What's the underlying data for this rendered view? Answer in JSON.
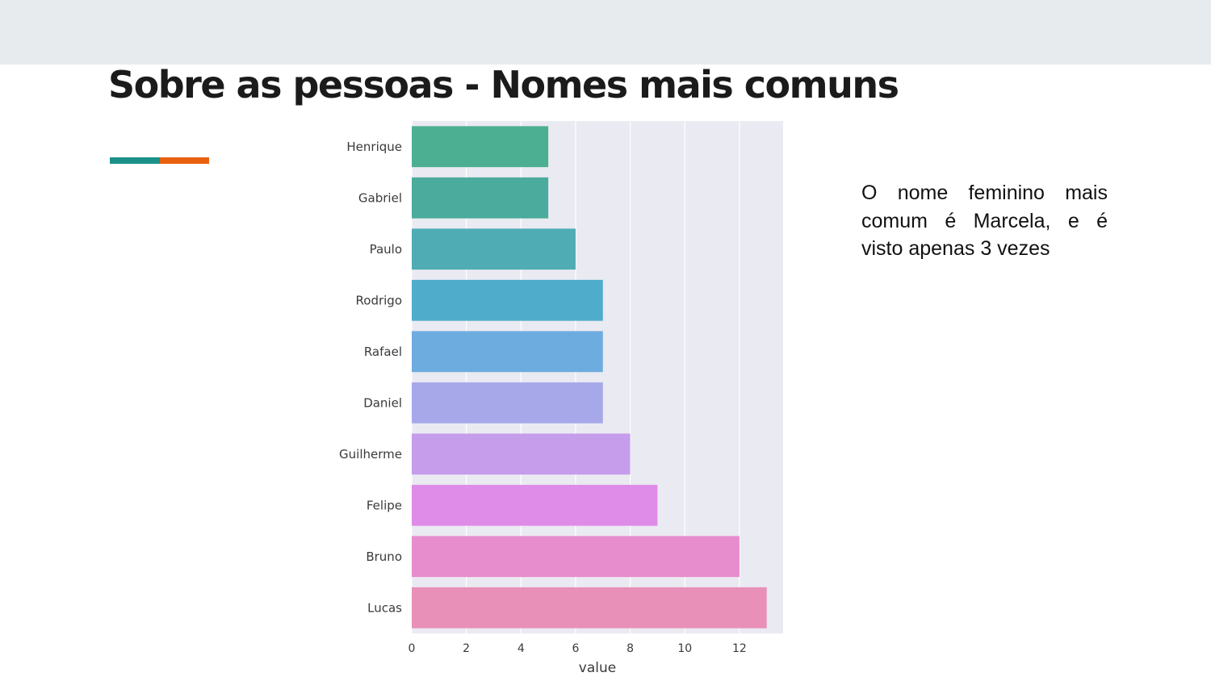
{
  "slide": {
    "title": "Sobre as pessoas - Nomes mais comuns",
    "note": "O nome feminino mais comum é Marcela, e é visto apenas 3 vezes"
  },
  "colors": {
    "band": "#e8ebed",
    "accent_teal": "#1b9189",
    "accent_orange": "#e8610f",
    "plot_background": "#eaeaf2",
    "grid": "#ffffff"
  },
  "chart_data": {
    "type": "bar",
    "orientation": "horizontal",
    "categories": [
      "Henrique",
      "Gabriel",
      "Paulo",
      "Rodrigo",
      "Rafael",
      "Daniel",
      "Guilherme",
      "Felipe",
      "Bruno",
      "Lucas"
    ],
    "values": [
      5,
      5,
      6,
      7,
      7,
      7,
      8,
      9,
      12,
      13
    ],
    "bar_colors": [
      "#4daf91",
      "#4bab9c",
      "#4facb5",
      "#50accb",
      "#6dacdf",
      "#a7a8ea",
      "#c69deb",
      "#df8ce9",
      "#e78ccd",
      "#e890b8"
    ],
    "xlabel": "value",
    "ylabel": "",
    "xlim": [
      0,
      13.6
    ],
    "xticks": [
      0,
      2,
      4,
      6,
      8,
      10,
      12
    ],
    "grid": true,
    "legend": "none"
  }
}
